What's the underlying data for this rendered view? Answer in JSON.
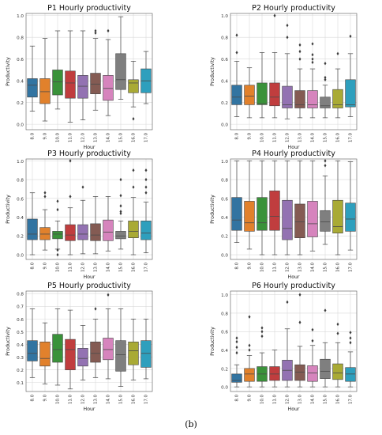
{
  "figure": {
    "caption": "(b)",
    "palette": [
      "#3274a1",
      "#e1812c",
      "#3a923a",
      "#c03d3e",
      "#9372b2",
      "#845b53",
      "#d684bd",
      "#7f7f7f",
      "#a9aa35",
      "#2e9fbd"
    ],
    "median_color": "#4a4a4a",
    "whisker_color": "#444444",
    "grid_color": "#d9d9d9"
  },
  "chart_data": [
    {
      "type": "box",
      "title": "P1 Hourly productivity",
      "xlabel": "Hour",
      "ylabel": "Productivity",
      "categories": [
        "8.0",
        "9.0",
        "10.0",
        "11.0",
        "12.0",
        "13.0",
        "14.0",
        "15.0",
        "16.0",
        "17.0"
      ],
      "ylim": [
        -0.05,
        1.02
      ],
      "yticks": [
        "0.0",
        "0.2",
        "0.4",
        "0.6",
        "0.8",
        "1.0"
      ],
      "grid": true,
      "boxes": [
        {
          "min": 0.12,
          "q1": 0.25,
          "median": 0.36,
          "q3": 0.42,
          "max": 0.72,
          "outliers": []
        },
        {
          "min": 0.03,
          "q1": 0.19,
          "median": 0.3,
          "q3": 0.42,
          "max": 0.79,
          "outliers": []
        },
        {
          "min": 0.14,
          "q1": 0.27,
          "median": 0.39,
          "q3": 0.5,
          "max": 0.86,
          "outliers": []
        },
        {
          "min": 0.02,
          "q1": 0.24,
          "median": 0.38,
          "q3": 0.49,
          "max": 0.86,
          "outliers": []
        },
        {
          "min": 0.04,
          "q1": 0.24,
          "median": 0.35,
          "q3": 0.45,
          "max": 0.86,
          "outliers": []
        },
        {
          "min": 0.13,
          "q1": 0.28,
          "median": 0.37,
          "q3": 0.47,
          "max": 0.79,
          "outliers": [
            0.86,
            0.84
          ]
        },
        {
          "min": 0.08,
          "q1": 0.22,
          "median": 0.33,
          "q3": 0.45,
          "max": 0.78,
          "outliers": [
            0.86
          ]
        },
        {
          "min": 0.23,
          "q1": 0.32,
          "median": 0.41,
          "q3": 0.65,
          "max": 0.99,
          "outliers": []
        },
        {
          "min": 0.16,
          "q1": 0.29,
          "median": 0.38,
          "q3": 0.41,
          "max": 0.58,
          "outliers": [
            0.05
          ]
        },
        {
          "min": 0.19,
          "q1": 0.29,
          "median": 0.4,
          "q3": 0.51,
          "max": 0.67,
          "outliers": []
        }
      ]
    },
    {
      "type": "box",
      "title": "P2 Hourly productivity",
      "xlabel": "Hour",
      "ylabel": "Productivity",
      "categories": [
        "8.0",
        "9.0",
        "10.0",
        "11.0",
        "12.0",
        "13.0",
        "14.0",
        "15.0",
        "16.0",
        "17.0"
      ],
      "ylim": [
        -0.05,
        1.02
      ],
      "yticks": [
        "0.0",
        "0.2",
        "0.4",
        "0.6",
        "0.8",
        "1.0"
      ],
      "grid": true,
      "boxes": [
        {
          "min": 0.07,
          "q1": 0.18,
          "median": 0.25,
          "q3": 0.36,
          "max": 0.58,
          "outliers": [
            0.82,
            0.66
          ]
        },
        {
          "min": 0.06,
          "q1": 0.18,
          "median": 0.26,
          "q3": 0.36,
          "max": 0.52,
          "outliers": []
        },
        {
          "min": 0.06,
          "q1": 0.18,
          "median": 0.19,
          "q3": 0.38,
          "max": 0.66,
          "outliers": []
        },
        {
          "min": 0.06,
          "q1": 0.17,
          "median": 0.25,
          "q3": 0.38,
          "max": 0.66,
          "outliers": [
            1.0
          ]
        },
        {
          "min": 0.05,
          "q1": 0.15,
          "median": 0.18,
          "q3": 0.35,
          "max": 0.65,
          "outliers": [
            0.91,
            0.8
          ]
        },
        {
          "min": 0.06,
          "q1": 0.15,
          "median": 0.18,
          "q3": 0.31,
          "max": 0.51,
          "outliers": [
            0.73,
            0.67,
            0.6
          ]
        },
        {
          "min": 0.06,
          "q1": 0.15,
          "median": 0.18,
          "q3": 0.31,
          "max": 0.51,
          "outliers": [
            0.74,
            0.64,
            0.6,
            0.57
          ]
        },
        {
          "min": 0.06,
          "q1": 0.15,
          "median": 0.17,
          "q3": 0.25,
          "max": 0.36,
          "outliers": [
            0.56,
            0.43,
            0.41
          ]
        },
        {
          "min": 0.06,
          "q1": 0.15,
          "median": 0.18,
          "q3": 0.32,
          "max": 0.51,
          "outliers": [
            0.65
          ]
        },
        {
          "min": 0.07,
          "q1": 0.16,
          "median": 0.18,
          "q3": 0.41,
          "max": 0.65,
          "outliers": [
            0.81
          ]
        }
      ]
    },
    {
      "type": "box",
      "title": "P3 Hourly productivity",
      "xlabel": "Hour",
      "ylabel": "Productivity",
      "categories": [
        "8.0",
        "9.0",
        "10.0",
        "11.0",
        "12.0",
        "13.0",
        "14.0",
        "15.0",
        "16.0",
        "17.0"
      ],
      "ylim": [
        -0.05,
        1.02
      ],
      "yticks": [
        "0.0",
        "0.2",
        "0.4",
        "0.6",
        "0.8",
        "1.0"
      ],
      "grid": true,
      "boxes": [
        {
          "min": 0.0,
          "q1": 0.16,
          "median": 0.22,
          "q3": 0.38,
          "max": 0.66,
          "outliers": []
        },
        {
          "min": 0.05,
          "q1": 0.16,
          "median": 0.22,
          "q3": 0.29,
          "max": 0.48,
          "outliers": [
            0.66,
            0.62
          ]
        },
        {
          "min": 0.06,
          "q1": 0.17,
          "median": 0.22,
          "q3": 0.25,
          "max": 0.36,
          "outliers": [
            0.57,
            0.48,
            0.05,
            0.0
          ]
        },
        {
          "min": 0.0,
          "q1": 0.15,
          "median": 0.21,
          "q3": 0.32,
          "max": 0.5,
          "outliers": [
            1.0,
            0.62
          ]
        },
        {
          "min": 0.01,
          "q1": 0.16,
          "median": 0.22,
          "q3": 0.32,
          "max": 0.58,
          "outliers": [
            0.72
          ]
        },
        {
          "min": 0.01,
          "q1": 0.15,
          "median": 0.21,
          "q3": 0.33,
          "max": 0.62,
          "outliers": []
        },
        {
          "min": 0.04,
          "q1": 0.15,
          "median": 0.24,
          "q3": 0.37,
          "max": 0.62,
          "outliers": []
        },
        {
          "min": 0.06,
          "q1": 0.17,
          "median": 0.2,
          "q3": 0.25,
          "max": 0.36,
          "outliers": [
            0.8,
            0.63,
            0.52,
            0.46,
            0.44
          ]
        },
        {
          "min": 0.0,
          "q1": 0.18,
          "median": 0.25,
          "q3": 0.36,
          "max": 0.61,
          "outliers": [
            0.9,
            0.72
          ]
        },
        {
          "min": 0.02,
          "q1": 0.16,
          "median": 0.23,
          "q3": 0.36,
          "max": 0.56,
          "outliers": [
            0.9,
            0.8,
            0.72,
            0.66
          ]
        }
      ]
    },
    {
      "type": "box",
      "title": "P4 Hourly productivity",
      "xlabel": "Hour",
      "ylabel": "Productivity",
      "categories": [
        "8.0",
        "9.0",
        "10.0",
        "11.0",
        "12.0",
        "13.0",
        "14.0",
        "15.0",
        "16.0",
        "17.0"
      ],
      "ylim": [
        -0.05,
        1.02
      ],
      "yticks": [
        "0.0",
        "0.2",
        "0.4",
        "0.6",
        "0.8",
        "1.0"
      ],
      "grid": true,
      "boxes": [
        {
          "min": 0.13,
          "q1": 0.26,
          "median": 0.37,
          "q3": 0.61,
          "max": 1.0,
          "outliers": []
        },
        {
          "min": 0.06,
          "q1": 0.25,
          "median": 0.34,
          "q3": 0.57,
          "max": 1.0,
          "outliers": []
        },
        {
          "min": 0.0,
          "q1": 0.26,
          "median": 0.34,
          "q3": 0.61,
          "max": 1.0,
          "outliers": []
        },
        {
          "min": 0.0,
          "q1": 0.26,
          "median": 0.41,
          "q3": 0.68,
          "max": 1.0,
          "outliers": []
        },
        {
          "min": 0.0,
          "q1": 0.16,
          "median": 0.28,
          "q3": 0.58,
          "max": 1.0,
          "outliers": []
        },
        {
          "min": 0.0,
          "q1": 0.18,
          "median": 0.35,
          "q3": 0.54,
          "max": 1.0,
          "outliers": []
        },
        {
          "min": 0.04,
          "q1": 0.19,
          "median": 0.33,
          "q3": 0.57,
          "max": 1.0,
          "outliers": []
        },
        {
          "min": 0.11,
          "q1": 0.25,
          "median": 0.35,
          "q3": 0.47,
          "max": 0.84,
          "outliers": [
            1.0,
            0.95
          ]
        },
        {
          "min": 0.0,
          "q1": 0.23,
          "median": 0.3,
          "q3": 0.58,
          "max": 1.0,
          "outliers": []
        },
        {
          "min": 0.05,
          "q1": 0.25,
          "median": 0.38,
          "q3": 0.55,
          "max": 0.99,
          "outliers": []
        }
      ]
    },
    {
      "type": "box",
      "title": "P5 Hourly productivity",
      "xlabel": "Hour",
      "ylabel": "Productivity",
      "categories": [
        "8.0",
        "9.0",
        "10.0",
        "11.0",
        "12.0",
        "13.0",
        "14.0",
        "15.0",
        "16.0",
        "17.0"
      ],
      "ylim": [
        0.03,
        0.82
      ],
      "yticks": [
        "0.1",
        "0.2",
        "0.3",
        "0.4",
        "0.5",
        "0.6",
        "0.7",
        "0.8"
      ],
      "grid": true,
      "boxes": [
        {
          "min": 0.14,
          "q1": 0.27,
          "median": 0.33,
          "q3": 0.43,
          "max": 0.68,
          "outliers": []
        },
        {
          "min": 0.09,
          "q1": 0.23,
          "median": 0.29,
          "q3": 0.42,
          "max": 0.57,
          "outliers": []
        },
        {
          "min": 0.08,
          "q1": 0.26,
          "median": 0.36,
          "q3": 0.48,
          "max": 0.68,
          "outliers": []
        },
        {
          "min": 0.05,
          "q1": 0.2,
          "median": 0.36,
          "q3": 0.44,
          "max": 0.67,
          "outliers": []
        },
        {
          "min": 0.12,
          "q1": 0.23,
          "median": 0.29,
          "q3": 0.37,
          "max": 0.55,
          "outliers": []
        },
        {
          "min": 0.14,
          "q1": 0.26,
          "median": 0.33,
          "q3": 0.42,
          "max": 0.6,
          "outliers": [
            0.68
          ]
        },
        {
          "min": 0.13,
          "q1": 0.28,
          "median": 0.36,
          "q3": 0.45,
          "max": 0.68,
          "outliers": [
            0.79
          ]
        },
        {
          "min": 0.07,
          "q1": 0.19,
          "median": 0.32,
          "q3": 0.43,
          "max": 0.68,
          "outliers": []
        },
        {
          "min": 0.12,
          "q1": 0.24,
          "median": 0.35,
          "q3": 0.42,
          "max": 0.6,
          "outliers": []
        },
        {
          "min": 0.13,
          "q1": 0.22,
          "median": 0.33,
          "q3": 0.43,
          "max": 0.6,
          "outliers": []
        }
      ]
    },
    {
      "type": "box",
      "title": "P6 Hourly productivity",
      "xlabel": "Hour",
      "ylabel": "Productivity",
      "categories": [
        "8.0",
        "9.0",
        "10.0",
        "11.0",
        "12.0",
        "13.0",
        "14.0",
        "15.0",
        "16.0",
        "17.0"
      ],
      "ylim": [
        -0.05,
        1.04
      ],
      "yticks": [
        "0.0",
        "0.2",
        "0.4",
        "0.6",
        "0.8",
        "1.0"
      ],
      "grid": true,
      "boxes": [
        {
          "min": 0.0,
          "q1": 0.05,
          "median": 0.07,
          "q3": 0.14,
          "max": 0.24,
          "outliers": [
            0.53,
            0.49,
            0.43,
            0.37
          ]
        },
        {
          "min": 0.0,
          "q1": 0.06,
          "median": 0.14,
          "q3": 0.2,
          "max": 0.34,
          "outliers": [
            0.76,
            0.45,
            0.4
          ]
        },
        {
          "min": 0.0,
          "q1": 0.06,
          "median": 0.14,
          "q3": 0.22,
          "max": 0.37,
          "outliers": [
            0.64,
            0.6,
            0.55
          ]
        },
        {
          "min": 0.0,
          "q1": 0.07,
          "median": 0.14,
          "q3": 0.22,
          "max": 0.4,
          "outliers": []
        },
        {
          "min": 0.0,
          "q1": 0.07,
          "median": 0.18,
          "q3": 0.29,
          "max": 0.63,
          "outliers": [
            0.92
          ]
        },
        {
          "min": 0.0,
          "q1": 0.07,
          "median": 0.16,
          "q3": 0.24,
          "max": 0.44,
          "outliers": [
            1.0,
            0.7
          ]
        },
        {
          "min": 0.0,
          "q1": 0.06,
          "median": 0.15,
          "q3": 0.23,
          "max": 0.45,
          "outliers": [
            0.62,
            0.5
          ]
        },
        {
          "min": 0.0,
          "q1": 0.09,
          "median": 0.17,
          "q3": 0.3,
          "max": 0.48,
          "outliers": [
            0.83
          ]
        },
        {
          "min": 0.0,
          "q1": 0.08,
          "median": 0.15,
          "q3": 0.25,
          "max": 0.48,
          "outliers": [
            0.68,
            0.58
          ]
        },
        {
          "min": 0.0,
          "q1": 0.06,
          "median": 0.14,
          "q3": 0.21,
          "max": 0.38,
          "outliers": [
            0.59,
            0.53,
            0.48
          ]
        }
      ]
    }
  ]
}
